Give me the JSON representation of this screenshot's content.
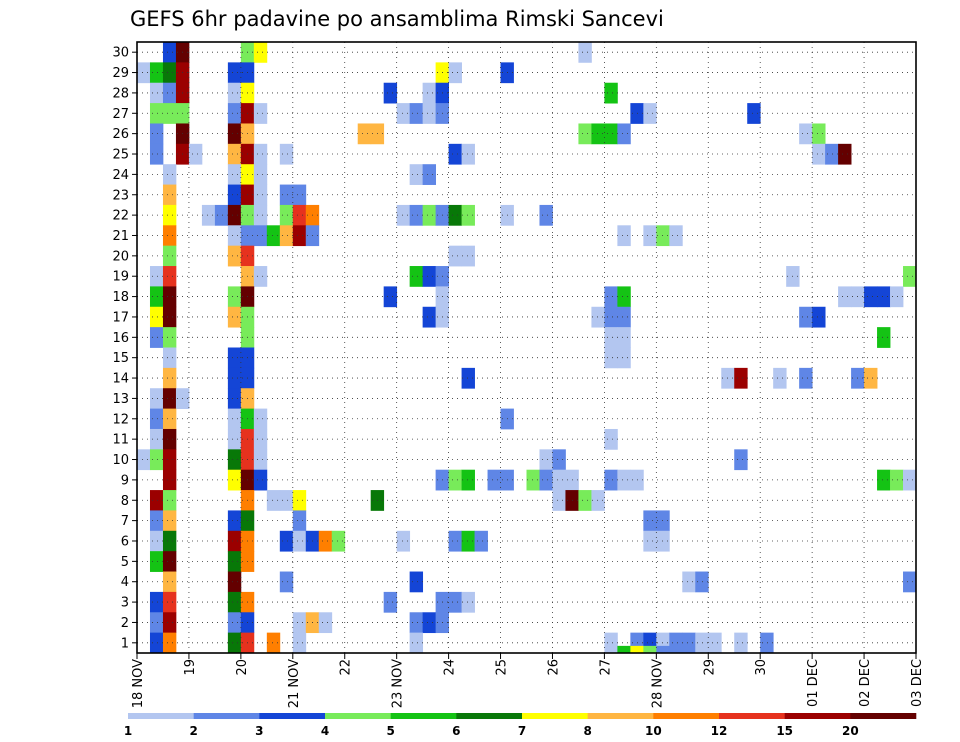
{
  "chart_data": {
    "type": "heatmap",
    "title": "GEFS 6hr padavine po ansamblima Rimski Sancevi",
    "xlabel": "",
    "ylabel": "",
    "x_tick_labels": [
      "18 NOV",
      "19",
      "20",
      "21 NOV",
      "22",
      "23 NOV",
      "24",
      "25",
      "26",
      "27",
      "28 NOV",
      "29",
      "30",
      "01 DEC",
      "02 DEC",
      "03 DEC"
    ],
    "x_range_days": [
      0,
      15
    ],
    "y_tick_labels": [
      "1",
      "2",
      "3",
      "4",
      "5",
      "6",
      "7",
      "8",
      "9",
      "10",
      "11",
      "12",
      "13",
      "14",
      "15",
      "16",
      "17",
      "18",
      "19",
      "20",
      "21",
      "22",
      "23",
      "24",
      "25",
      "26",
      "27",
      "28",
      "29",
      "30"
    ],
    "y_range": [
      0.5,
      30.5
    ],
    "grid": "dotted",
    "colorbar": {
      "labels": [
        "1",
        "2",
        "3",
        "4",
        "5",
        "6",
        "7",
        "8",
        "10",
        "12",
        "15",
        "20"
      ],
      "colors": [
        "#b3c6f0",
        "#5f86e6",
        "#1445d6",
        "#78eb5a",
        "#14c314",
        "#087808",
        "#ffff00",
        "#ffb642",
        "#ff7f00",
        "#e6321e",
        "#9b0000",
        "#640000"
      ]
    },
    "cells": [
      [
        0.5,
        30,
        3
      ],
      [
        0.75,
        30,
        12
      ],
      [
        2,
        30,
        4
      ],
      [
        2.25,
        30,
        7
      ],
      [
        8.5,
        30,
        1
      ],
      [
        0,
        29,
        1
      ],
      [
        0.25,
        29,
        5
      ],
      [
        0.5,
        29,
        6
      ],
      [
        0.75,
        29,
        11
      ],
      [
        1.75,
        29,
        3
      ],
      [
        2,
        29,
        3
      ],
      [
        5.75,
        29,
        7
      ],
      [
        6,
        29,
        1
      ],
      [
        7,
        29,
        3
      ],
      [
        0.25,
        28,
        1
      ],
      [
        0.5,
        28,
        2
      ],
      [
        0.75,
        28,
        11
      ],
      [
        1.75,
        28,
        1
      ],
      [
        2,
        28,
        7
      ],
      [
        4.75,
        28,
        3
      ],
      [
        5.5,
        28,
        1
      ],
      [
        5.75,
        28,
        3
      ],
      [
        9,
        28,
        5
      ],
      [
        0.25,
        27,
        4
      ],
      [
        0.5,
        27,
        4
      ],
      [
        0.75,
        27,
        4
      ],
      [
        1.75,
        27,
        2
      ],
      [
        2,
        27,
        11
      ],
      [
        2.25,
        27,
        1
      ],
      [
        5,
        27,
        1
      ],
      [
        5.25,
        27,
        2
      ],
      [
        5.5,
        27,
        1
      ],
      [
        5.75,
        27,
        2
      ],
      [
        9.5,
        27,
        3
      ],
      [
        9.75,
        27,
        1
      ],
      [
        11.75,
        27,
        3
      ],
      [
        0.25,
        26,
        2
      ],
      [
        0.75,
        26,
        12
      ],
      [
        1.75,
        26,
        12
      ],
      [
        2,
        26,
        8
      ],
      [
        4.25,
        26,
        8
      ],
      [
        4.5,
        26,
        8
      ],
      [
        8.5,
        26,
        4
      ],
      [
        8.75,
        26,
        5
      ],
      [
        9,
        26,
        5
      ],
      [
        9.25,
        26,
        2
      ],
      [
        12.75,
        26,
        1
      ],
      [
        13,
        26,
        4
      ],
      [
        0.25,
        25,
        2
      ],
      [
        0.75,
        25,
        11
      ],
      [
        1,
        25,
        1
      ],
      [
        1.75,
        25,
        8
      ],
      [
        2,
        25,
        11
      ],
      [
        2.25,
        25,
        1
      ],
      [
        2.75,
        25,
        1
      ],
      [
        6,
        25,
        3
      ],
      [
        6.25,
        25,
        1
      ],
      [
        13,
        25,
        1
      ],
      [
        13.25,
        25,
        2
      ],
      [
        13.5,
        25,
        12
      ],
      [
        0.5,
        24,
        1
      ],
      [
        1.75,
        24,
        1
      ],
      [
        2,
        24,
        7
      ],
      [
        2.25,
        24,
        1
      ],
      [
        5.25,
        24,
        1
      ],
      [
        5.5,
        24,
        2
      ],
      [
        0.5,
        23,
        8
      ],
      [
        1.75,
        23,
        3
      ],
      [
        2,
        23,
        11
      ],
      [
        2.25,
        23,
        1
      ],
      [
        2.75,
        23,
        2
      ],
      [
        3,
        23,
        2
      ],
      [
        0.5,
        22,
        7
      ],
      [
        1.25,
        22,
        1
      ],
      [
        1.5,
        22,
        2
      ],
      [
        1.75,
        22,
        12
      ],
      [
        2,
        22,
        4
      ],
      [
        2.25,
        22,
        1
      ],
      [
        2.75,
        22,
        4
      ],
      [
        3,
        22,
        10
      ],
      [
        3.25,
        22,
        9
      ],
      [
        5,
        22,
        1
      ],
      [
        5.25,
        22,
        2
      ],
      [
        5.5,
        22,
        4
      ],
      [
        5.75,
        22,
        2
      ],
      [
        6,
        22,
        6
      ],
      [
        6.25,
        22,
        4
      ],
      [
        7,
        22,
        1
      ],
      [
        7.75,
        22,
        2
      ],
      [
        0.5,
        21,
        9
      ],
      [
        1.75,
        21,
        1
      ],
      [
        2,
        21,
        2
      ],
      [
        2.25,
        21,
        2
      ],
      [
        2.5,
        21,
        5
      ],
      [
        2.75,
        21,
        8
      ],
      [
        3,
        21,
        11
      ],
      [
        3.25,
        21,
        2
      ],
      [
        9.25,
        21,
        1
      ],
      [
        9.75,
        21,
        1
      ],
      [
        10,
        21,
        4
      ],
      [
        10.25,
        21,
        1
      ],
      [
        0.5,
        20,
        4
      ],
      [
        1.75,
        20,
        8
      ],
      [
        2,
        20,
        10
      ],
      [
        6,
        20,
        1
      ],
      [
        6.25,
        20,
        1
      ],
      [
        0.25,
        19,
        1
      ],
      [
        0.5,
        19,
        10
      ],
      [
        2,
        19,
        8
      ],
      [
        2.25,
        19,
        1
      ],
      [
        5.25,
        19,
        5
      ],
      [
        5.5,
        19,
        3
      ],
      [
        5.75,
        19,
        2
      ],
      [
        12.5,
        19,
        1
      ],
      [
        14.75,
        19,
        4
      ],
      [
        0.25,
        18,
        5
      ],
      [
        0.5,
        18,
        12
      ],
      [
        1.75,
        18,
        4
      ],
      [
        2,
        18,
        12
      ],
      [
        4.75,
        18,
        3
      ],
      [
        5.75,
        18,
        1
      ],
      [
        9,
        18,
        2
      ],
      [
        9.25,
        18,
        5
      ],
      [
        13.5,
        18,
        1
      ],
      [
        13.75,
        18,
        1
      ],
      [
        14,
        18,
        3
      ],
      [
        14.25,
        18,
        3
      ],
      [
        14.5,
        18,
        1
      ],
      [
        0.25,
        17,
        7
      ],
      [
        0.5,
        17,
        12
      ],
      [
        1.75,
        17,
        8
      ],
      [
        2,
        17,
        4
      ],
      [
        5.5,
        17,
        3
      ],
      [
        5.75,
        17,
        1
      ],
      [
        8.75,
        17,
        1
      ],
      [
        9,
        17,
        2
      ],
      [
        9.25,
        17,
        2
      ],
      [
        12.75,
        17,
        2
      ],
      [
        13,
        17,
        3
      ],
      [
        0.25,
        16,
        2
      ],
      [
        0.5,
        16,
        4
      ],
      [
        2,
        16,
        4
      ],
      [
        9,
        16,
        1
      ],
      [
        9.25,
        16,
        1
      ],
      [
        14.25,
        16,
        5
      ],
      [
        0.5,
        15,
        1
      ],
      [
        1.75,
        15,
        3
      ],
      [
        2,
        15,
        3
      ],
      [
        9,
        15,
        1
      ],
      [
        9.25,
        15,
        1
      ],
      [
        0.5,
        14,
        8
      ],
      [
        1.75,
        14,
        3
      ],
      [
        2,
        14,
        3
      ],
      [
        6.25,
        14,
        3
      ],
      [
        11.25,
        14,
        1
      ],
      [
        11.5,
        14,
        11
      ],
      [
        12.25,
        14,
        1
      ],
      [
        12.75,
        14,
        2
      ],
      [
        13.75,
        14,
        2
      ],
      [
        14,
        14,
        8
      ],
      [
        0.25,
        13,
        1
      ],
      [
        0.5,
        13,
        12
      ],
      [
        0.75,
        13,
        1
      ],
      [
        1.75,
        13,
        3
      ],
      [
        2,
        13,
        8
      ],
      [
        0.25,
        12,
        2
      ],
      [
        0.5,
        12,
        8
      ],
      [
        1.75,
        12,
        1
      ],
      [
        2,
        12,
        5
      ],
      [
        2.25,
        12,
        1
      ],
      [
        7,
        12,
        2
      ],
      [
        0.25,
        11,
        1
      ],
      [
        0.5,
        11,
        12
      ],
      [
        1.75,
        11,
        1
      ],
      [
        2,
        11,
        10
      ],
      [
        2.25,
        11,
        1
      ],
      [
        9,
        11,
        1
      ],
      [
        0,
        10,
        1
      ],
      [
        0.25,
        10,
        4
      ],
      [
        0.5,
        10,
        11
      ],
      [
        1.75,
        10,
        6
      ],
      [
        2,
        10,
        10
      ],
      [
        2.25,
        10,
        1
      ],
      [
        7.75,
        10,
        1
      ],
      [
        8,
        10,
        2
      ],
      [
        11.5,
        10,
        2
      ],
      [
        0.5,
        9,
        11
      ],
      [
        1.75,
        9,
        7
      ],
      [
        2,
        9,
        12
      ],
      [
        2.25,
        9,
        3
      ],
      [
        5.75,
        9,
        2
      ],
      [
        6,
        9,
        4
      ],
      [
        6.25,
        9,
        5
      ],
      [
        6.75,
        9,
        2
      ],
      [
        7,
        9,
        2
      ],
      [
        7.5,
        9,
        4
      ],
      [
        7.75,
        9,
        2
      ],
      [
        8,
        9,
        1
      ],
      [
        8.25,
        9,
        1
      ],
      [
        9,
        9,
        2
      ],
      [
        9.25,
        9,
        1
      ],
      [
        9.5,
        9,
        1
      ],
      [
        14.25,
        9,
        5
      ],
      [
        14.5,
        9,
        4
      ],
      [
        14.75,
        9,
        1
      ],
      [
        0.25,
        8,
        11
      ],
      [
        0.5,
        8,
        4
      ],
      [
        2,
        8,
        9
      ],
      [
        2.5,
        8,
        1
      ],
      [
        2.75,
        8,
        1
      ],
      [
        3,
        8,
        7
      ],
      [
        4.5,
        8,
        6
      ],
      [
        8,
        8,
        1
      ],
      [
        8.25,
        8,
        12
      ],
      [
        8.5,
        8,
        4
      ],
      [
        8.75,
        8,
        1
      ],
      [
        0.25,
        7,
        2
      ],
      [
        0.5,
        7,
        8
      ],
      [
        1.75,
        7,
        3
      ],
      [
        2,
        7,
        6
      ],
      [
        3,
        7,
        2
      ],
      [
        9.75,
        7,
        2
      ],
      [
        10,
        7,
        2
      ],
      [
        0.25,
        6,
        1
      ],
      [
        0.5,
        6,
        6
      ],
      [
        1.75,
        6,
        11
      ],
      [
        2,
        6,
        9
      ],
      [
        2.75,
        6,
        3
      ],
      [
        3,
        6,
        1
      ],
      [
        3.25,
        6,
        3
      ],
      [
        3.5,
        6,
        9
      ],
      [
        3.75,
        6,
        4
      ],
      [
        5,
        6,
        1
      ],
      [
        6,
        6,
        2
      ],
      [
        6.25,
        6,
        5
      ],
      [
        6.5,
        6,
        2
      ],
      [
        9.75,
        6,
        1
      ],
      [
        10,
        6,
        1
      ],
      [
        0.25,
        5,
        5
      ],
      [
        0.5,
        5,
        12
      ],
      [
        1.75,
        5,
        6
      ],
      [
        2,
        5,
        9
      ],
      [
        0.5,
        4,
        8
      ],
      [
        1.75,
        4,
        12
      ],
      [
        2.75,
        4,
        2
      ],
      [
        5.25,
        4,
        3
      ],
      [
        10.5,
        4,
        1
      ],
      [
        10.75,
        4,
        2
      ],
      [
        14.75,
        4,
        2
      ],
      [
        0.25,
        3,
        3
      ],
      [
        0.5,
        3,
        10
      ],
      [
        1.75,
        3,
        6
      ],
      [
        2,
        3,
        9
      ],
      [
        4.75,
        3,
        2
      ],
      [
        5.75,
        3,
        2
      ],
      [
        6,
        3,
        2
      ],
      [
        6.25,
        3,
        1
      ],
      [
        0.25,
        2,
        2
      ],
      [
        0.5,
        2,
        11
      ],
      [
        1.75,
        2,
        2
      ],
      [
        2,
        2,
        3
      ],
      [
        3,
        2,
        1
      ],
      [
        3.25,
        2,
        8
      ],
      [
        3.5,
        2,
        1
      ],
      [
        5.25,
        2,
        2
      ],
      [
        5.5,
        2,
        3
      ],
      [
        5.75,
        2,
        2
      ],
      [
        0.25,
        1,
        3
      ],
      [
        0.5,
        1,
        9
      ],
      [
        1.75,
        1,
        6
      ],
      [
        2,
        1,
        10
      ],
      [
        2.5,
        1,
        9
      ],
      [
        3,
        1,
        1
      ],
      [
        5.25,
        1,
        1
      ],
      [
        9,
        1,
        1
      ],
      [
        9.5,
        1,
        2
      ],
      [
        9.75,
        1,
        3
      ],
      [
        10,
        1,
        1
      ],
      [
        10.25,
        1,
        2
      ],
      [
        10.5,
        1,
        2
      ],
      [
        10.75,
        1,
        1
      ],
      [
        11,
        1,
        1
      ],
      [
        11.5,
        1,
        1
      ],
      [
        12,
        1,
        2
      ],
      [
        9.25,
        0.35,
        5
      ],
      [
        9.5,
        0.35,
        7
      ],
      [
        9.75,
        0.35,
        4
      ],
      [
        10,
        0.35,
        2
      ]
    ]
  }
}
